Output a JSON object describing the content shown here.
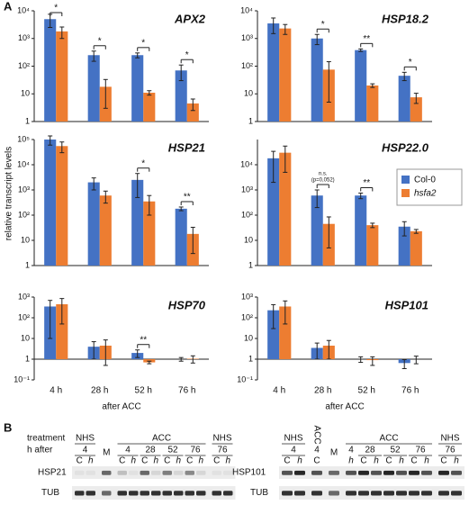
{
  "figure": {
    "panel_a": "A",
    "panel_b": "B",
    "ylabel": "relative transcript levels",
    "legend": [
      {
        "name": "Col-0",
        "color": "#4472c4"
      },
      {
        "name": "hsfa2",
        "color": "#ed7d31"
      }
    ]
  },
  "chart_data": [
    {
      "type": "bar",
      "title": "APX2",
      "log": true,
      "ylim": [
        1,
        10000
      ],
      "yticks": [
        1,
        10,
        {
          "value": 100,
          "label": "10²"
        },
        {
          "value": 1000,
          "label": "10³"
        },
        {
          "value": 10000,
          "label": "10⁴"
        }
      ],
      "series": [
        {
          "values": [
            5000,
            250,
            250,
            70
          ],
          "errors": [
            2500,
            100,
            50,
            40
          ]
        },
        {
          "values": [
            1800,
            18,
            11,
            4.5
          ],
          "errors": [
            800,
            15,
            2,
            2
          ]
        }
      ],
      "significance": [
        "*",
        "*",
        "*",
        "*"
      ]
    },
    {
      "type": "bar",
      "title": "HSP18.2",
      "log": true,
      "ylim": [
        1,
        10000
      ],
      "yticks": [
        1,
        10,
        {
          "value": 100,
          "label": "10²"
        },
        {
          "value": 1000,
          "label": "10³"
        },
        {
          "value": 10000,
          "label": "10⁴"
        }
      ],
      "series": [
        {
          "values": [
            3500,
            1000,
            380,
            45
          ],
          "errors": [
            2000,
            400,
            40,
            15
          ]
        },
        {
          "values": [
            2300,
            75,
            20,
            7.5
          ],
          "errors": [
            900,
            70,
            3,
            3
          ]
        }
      ],
      "significance": [
        null,
        "*",
        "**",
        "*"
      ]
    },
    {
      "type": "bar",
      "title": "HSP21",
      "log": true,
      "ylim": [
        1,
        100000
      ],
      "yticks": [
        1,
        10,
        {
          "value": 100,
          "label": "10²"
        },
        {
          "value": 1000,
          "label": "10³"
        },
        {
          "value": 10000,
          "label": "10⁴"
        },
        {
          "value": 100000,
          "label": "10⁵"
        }
      ],
      "series": [
        {
          "values": [
            100000,
            2000,
            2500,
            180
          ],
          "errors": [
            40000,
            1000,
            2000,
            30
          ]
        },
        {
          "values": [
            55000,
            600,
            350,
            18
          ],
          "errors": [
            25000,
            300,
            250,
            15
          ]
        }
      ],
      "significance": [
        null,
        null,
        "*",
        "**"
      ]
    },
    {
      "type": "bar",
      "title": "HSP22.0",
      "log": true,
      "ylim": [
        1,
        100000
      ],
      "yticks": [
        1,
        10,
        {
          "value": 100,
          "label": "10²"
        },
        {
          "value": 1000,
          "label": "10³"
        },
        {
          "value": 10000,
          "label": "10⁴"
        }
      ],
      "series": [
        {
          "values": [
            18000,
            600,
            600,
            35
          ],
          "errors": [
            16000,
            400,
            150,
            20
          ]
        },
        {
          "values": [
            30000,
            45,
            40,
            23
          ],
          "errors": [
            25000,
            40,
            8,
            4
          ]
        }
      ],
      "significance": [
        null,
        [
          "n.s.",
          "(p=0,052)"
        ],
        "**",
        null
      ]
    },
    {
      "type": "bar",
      "title": "HSP70",
      "log": true,
      "ylim": [
        0.1,
        1000
      ],
      "yticks": [
        {
          "value": 0.1,
          "label": "10⁻¹"
        },
        1,
        10,
        {
          "value": 100,
          "label": "10²"
        },
        {
          "value": 1000,
          "label": "10³"
        }
      ],
      "series": [
        {
          "values": [
            350,
            4,
            2,
            1
          ],
          "errors": [
            340,
            3,
            0.8,
            0.2
          ]
        },
        {
          "values": [
            450,
            4.5,
            0.7,
            1.05
          ],
          "errors": [
            400,
            4,
            0.1,
            0.4
          ]
        }
      ],
      "significance": [
        null,
        null,
        "**",
        null
      ],
      "categories": [
        "4 h",
        "28 h",
        "52 h",
        "76 h"
      ],
      "xlabel": "after ACC"
    },
    {
      "type": "bar",
      "title": "HSP101",
      "log": true,
      "ylim": [
        0.1,
        1000
      ],
      "yticks": [
        {
          "value": 0.1,
          "label": "10⁻¹"
        },
        1,
        10,
        {
          "value": 100,
          "label": "10²"
        },
        {
          "value": 1000,
          "label": "10³"
        }
      ],
      "series": [
        {
          "values": [
            230,
            3.5,
            1,
            0.65
          ],
          "errors": [
            200,
            2.5,
            0.3,
            0.3
          ]
        },
        {
          "values": [
            350,
            4.5,
            0.9,
            1
          ],
          "errors": [
            300,
            3.5,
            0.4,
            0.4
          ]
        }
      ],
      "categories": [
        "4 h",
        "28 h",
        "52 h",
        "76 h"
      ],
      "xlabel": "after ACC"
    }
  ],
  "blots": [
    {
      "row_labels": [
        "treatment",
        "h after"
      ],
      "proteins": [
        "HSP21",
        "TUB"
      ],
      "groups": [
        {
          "treatment": "NHS",
          "times": [
            {
              "time": "4",
              "lanes": [
                "C",
                "h"
              ]
            }
          ]
        },
        {
          "marker": "M"
        },
        {
          "treatment": "ACC",
          "times": [
            {
              "time": "4",
              "lanes": [
                "C",
                "h"
              ]
            },
            {
              "time": "28",
              "lanes": [
                "C",
                "h"
              ]
            },
            {
              "time": "52",
              "lanes": [
                "C",
                "h"
              ]
            },
            {
              "time": "76",
              "lanes": [
                "C",
                "h"
              ]
            }
          ]
        },
        {
          "treatment": "NHS",
          "times": [
            {
              "time": "76",
              "lanes": [
                "C",
                "h"
              ]
            }
          ]
        }
      ]
    },
    {
      "proteins": [
        "HSP101",
        "TUB"
      ],
      "groups": [
        {
          "treatment": "NHS",
          "times": [
            {
              "time": "4",
              "lanes": [
                "C",
                "h"
              ]
            }
          ]
        },
        {
          "treatment": "ACC",
          "times": [
            {
              "time": "4",
              "lanes": [
                "C"
              ]
            }
          ]
        },
        {
          "marker": "M"
        },
        {
          "treatment": "ACC",
          "times": [
            {
              "time": "4",
              "lanes": [
                "h"
              ]
            },
            {
              "time": "28",
              "lanes": [
                "C",
                "h"
              ]
            },
            {
              "time": "52",
              "lanes": [
                "C",
                "h"
              ]
            },
            {
              "time": "76",
              "lanes": [
                "C",
                "h"
              ]
            }
          ]
        },
        {
          "treatment": "NHS",
          "times": [
            {
              "time": "76",
              "lanes": [
                "C",
                "h"
              ]
            }
          ]
        }
      ]
    }
  ]
}
